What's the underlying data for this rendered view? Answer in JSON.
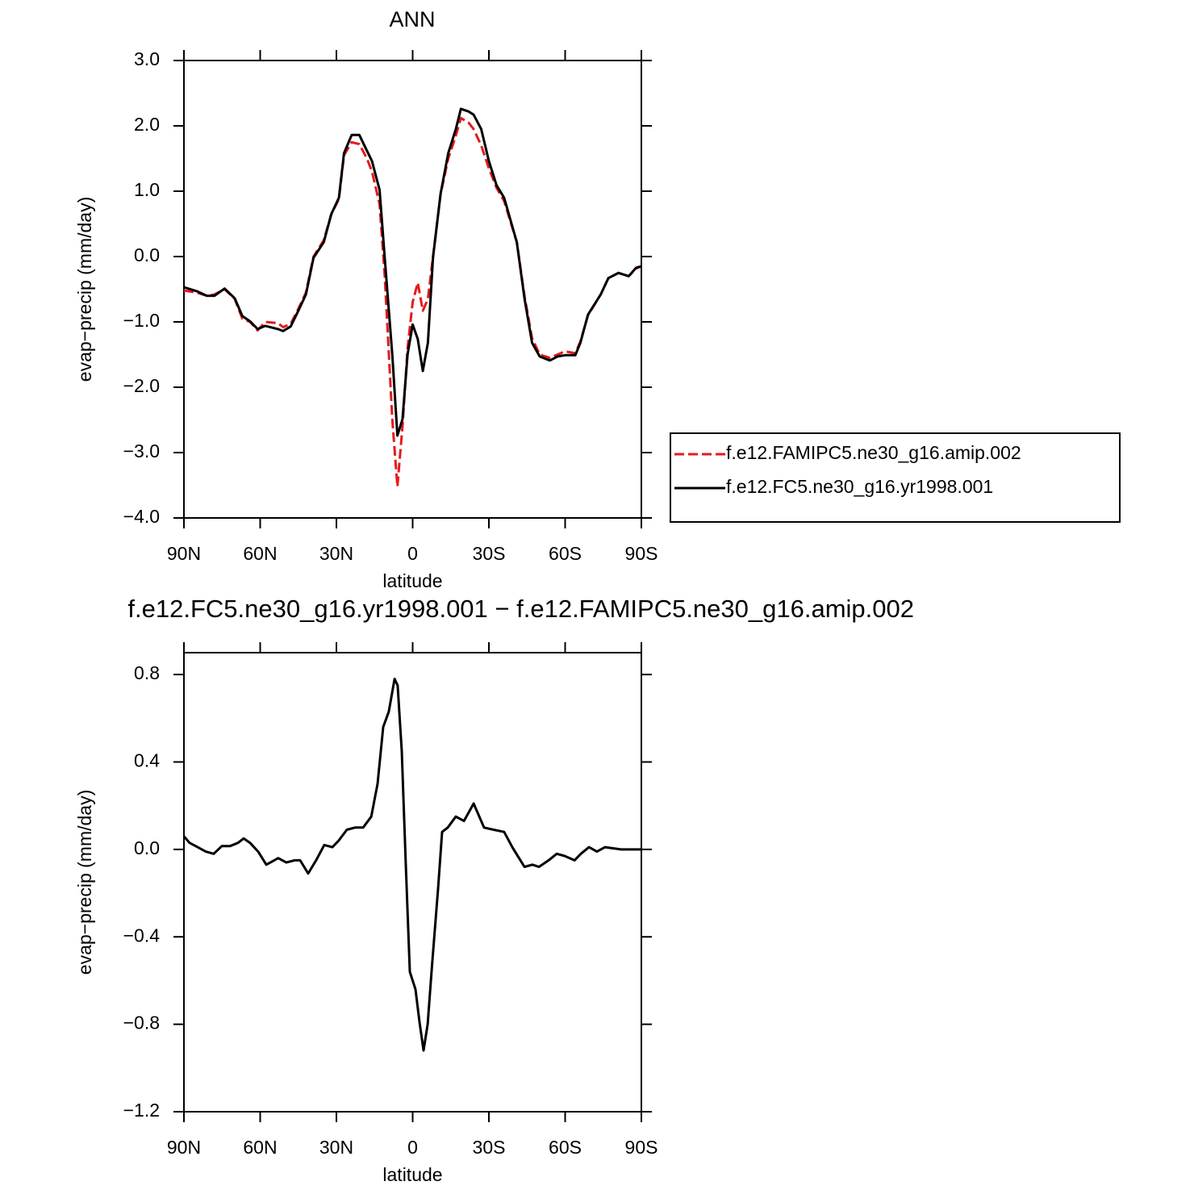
{
  "chart_data": [
    {
      "type": "line",
      "title": "ANN",
      "xlabel": "latitude",
      "ylabel": "evap−precip (mm/day)",
      "x": [
        90,
        85,
        81,
        78,
        74,
        70,
        67,
        64,
        61,
        58,
        53,
        51,
        48,
        45,
        42,
        39,
        35,
        32,
        29,
        27,
        24,
        21,
        18,
        16,
        13,
        11,
        8,
        6,
        4,
        2,
        0,
        -2,
        -4,
        -6,
        -8,
        -11,
        -14,
        -17,
        -19,
        -22,
        -24,
        -27,
        -30,
        -33,
        -36,
        -41,
        -44,
        -47,
        -50,
        -54,
        -57,
        -60,
        -64,
        -66,
        -69,
        -74,
        -77,
        -81,
        -85,
        -88,
        -90
      ],
      "series": [
        {
          "name": "f.e12.FAMIPC5.ne30_g16.amip.002",
          "color": "#e41a1c",
          "dash": true,
          "values": [
            -0.52,
            -0.55,
            -0.6,
            -0.58,
            -0.5,
            -0.65,
            -0.95,
            -1.0,
            -1.13,
            -1.0,
            -1.02,
            -1.08,
            -1.03,
            -0.8,
            -0.55,
            0.0,
            0.25,
            0.65,
            0.88,
            1.55,
            1.75,
            1.72,
            1.5,
            1.3,
            0.8,
            -0.3,
            -2.5,
            -3.52,
            -2.6,
            -1.4,
            -0.7,
            -0.4,
            -0.83,
            -0.65,
            0.0,
            0.95,
            1.5,
            1.85,
            2.12,
            2.05,
            1.95,
            1.7,
            1.35,
            1.05,
            0.85,
            0.22,
            -0.6,
            -1.25,
            -1.5,
            -1.55,
            -1.5,
            -1.45,
            -1.48,
            -1.3,
            -0.9,
            -0.58,
            -0.33,
            -0.25,
            -0.3,
            -0.18,
            -0.15
          ]
        },
        {
          "name": "f.e12.FC5.ne30_g16.yr1998.001",
          "color": "#000000",
          "dash": false,
          "values": [
            -0.47,
            -0.53,
            -0.6,
            -0.6,
            -0.49,
            -0.64,
            -0.91,
            -0.99,
            -1.11,
            -1.06,
            -1.11,
            -1.14,
            -1.07,
            -0.83,
            -0.58,
            -0.02,
            0.22,
            0.65,
            0.9,
            1.58,
            1.86,
            1.86,
            1.62,
            1.46,
            1.02,
            -0.02,
            -1.51,
            -2.74,
            -2.49,
            -1.5,
            -1.04,
            -1.26,
            -1.75,
            -1.32,
            -0.02,
            0.96,
            1.58,
            1.95,
            2.26,
            2.22,
            2.17,
            1.95,
            1.46,
            1.09,
            0.9,
            0.22,
            -0.64,
            -1.32,
            -1.53,
            -1.59,
            -1.53,
            -1.51,
            -1.51,
            -1.32,
            -0.89,
            -0.58,
            -0.33,
            -0.25,
            -0.3,
            -0.17,
            -0.15
          ]
        }
      ],
      "xlim": [
        90,
        -90
      ],
      "xticks": [
        {
          "value": 90,
          "label": "90N"
        },
        {
          "value": 60,
          "label": "60N"
        },
        {
          "value": 30,
          "label": "30N"
        },
        0,
        {
          "value": -30,
          "label": "30S"
        },
        {
          "value": -60,
          "label": "60S"
        },
        {
          "value": -90,
          "label": "90S"
        }
      ],
      "ylim": [
        -4,
        3
      ],
      "yticks": [
        {
          "value": -4,
          "label": "−4.0"
        },
        {
          "value": -3,
          "label": "−3.0"
        },
        {
          "value": -2,
          "label": "−2.0"
        },
        {
          "value": -1,
          "label": "−1.0"
        },
        {
          "value": 0,
          "label": "0.0"
        },
        {
          "value": 1,
          "label": "1.0"
        },
        {
          "value": 2,
          "label": "2.0"
        },
        {
          "value": 3,
          "label": "3.0"
        }
      ],
      "legend": "right"
    },
    {
      "type": "line",
      "title": "f.e12.FC5.ne30_g16.yr1998.001 − f.e12.FAMIPC5.ne30_g16.amip.002",
      "xlabel": "latitude",
      "ylabel": "evap−precip (mm/day)",
      "x": [
        90,
        87.8,
        84.6,
        81.4,
        78.3,
        75.1,
        71.9,
        68.7,
        66.5,
        64,
        60.8,
        57.6,
        52.9,
        49.7,
        46.5,
        44.3,
        41.1,
        38,
        34.8,
        31.6,
        29.1,
        25.9,
        22.7,
        19.5,
        16.3,
        13.8,
        11.6,
        9.4,
        7.1,
        5.9,
        4.3,
        2.7,
        1.1,
        -1.1,
        -2.7,
        -4.3,
        -5.9,
        -7.5,
        -10,
        -11.6,
        -13.8,
        -17,
        -20.2,
        -24,
        -28.1,
        -31.9,
        -36,
        -39.2,
        -44,
        -47.1,
        -49.7,
        -53.5,
        -56.7,
        -59.8,
        -63.7,
        -66.2,
        -69.4,
        -72.5,
        -75.7,
        -82,
        -86.8,
        -90
      ],
      "series": [
        {
          "color": "#000000",
          "dash": false,
          "values": [
            0.06,
            0.03,
            0.01,
            -0.01,
            -0.02,
            0.015,
            0.015,
            0.03,
            0.05,
            0.03,
            -0.01,
            -0.07,
            -0.04,
            -0.06,
            -0.05,
            -0.05,
            -0.11,
            -0.05,
            0.02,
            0.01,
            0.04,
            0.09,
            0.1,
            0.1,
            0.15,
            0.3,
            0.56,
            0.63,
            0.78,
            0.75,
            0.45,
            -0.07,
            -0.56,
            -0.64,
            -0.79,
            -0.92,
            -0.8,
            -0.55,
            -0.18,
            0.08,
            0.1,
            0.15,
            0.13,
            0.21,
            0.1,
            0.09,
            0.08,
            0.01,
            -0.08,
            -0.07,
            -0.08,
            -0.05,
            -0.02,
            -0.03,
            -0.05,
            -0.02,
            0.01,
            -0.01,
            0.01,
            0,
            0,
            0
          ]
        }
      ],
      "xlim": [
        90,
        -90
      ],
      "xticks": [
        {
          "value": 90,
          "label": "90N"
        },
        {
          "value": 60,
          "label": "60N"
        },
        {
          "value": 30,
          "label": "30N"
        },
        0,
        {
          "value": -30,
          "label": "30S"
        },
        {
          "value": -60,
          "label": "60S"
        },
        {
          "value": -90,
          "label": "90S"
        }
      ],
      "ylim": [
        -1.2,
        0.9
      ],
      "yticks": [
        {
          "value": -1.2,
          "label": "−1.2"
        },
        {
          "value": -0.8,
          "label": "−0.8"
        },
        {
          "value": -0.4,
          "label": "−0.4"
        },
        {
          "value": 0,
          "label": "0.0"
        },
        {
          "value": 0.4,
          "label": "0.4"
        },
        {
          "value": 0.8,
          "label": "0.8"
        }
      ]
    }
  ]
}
